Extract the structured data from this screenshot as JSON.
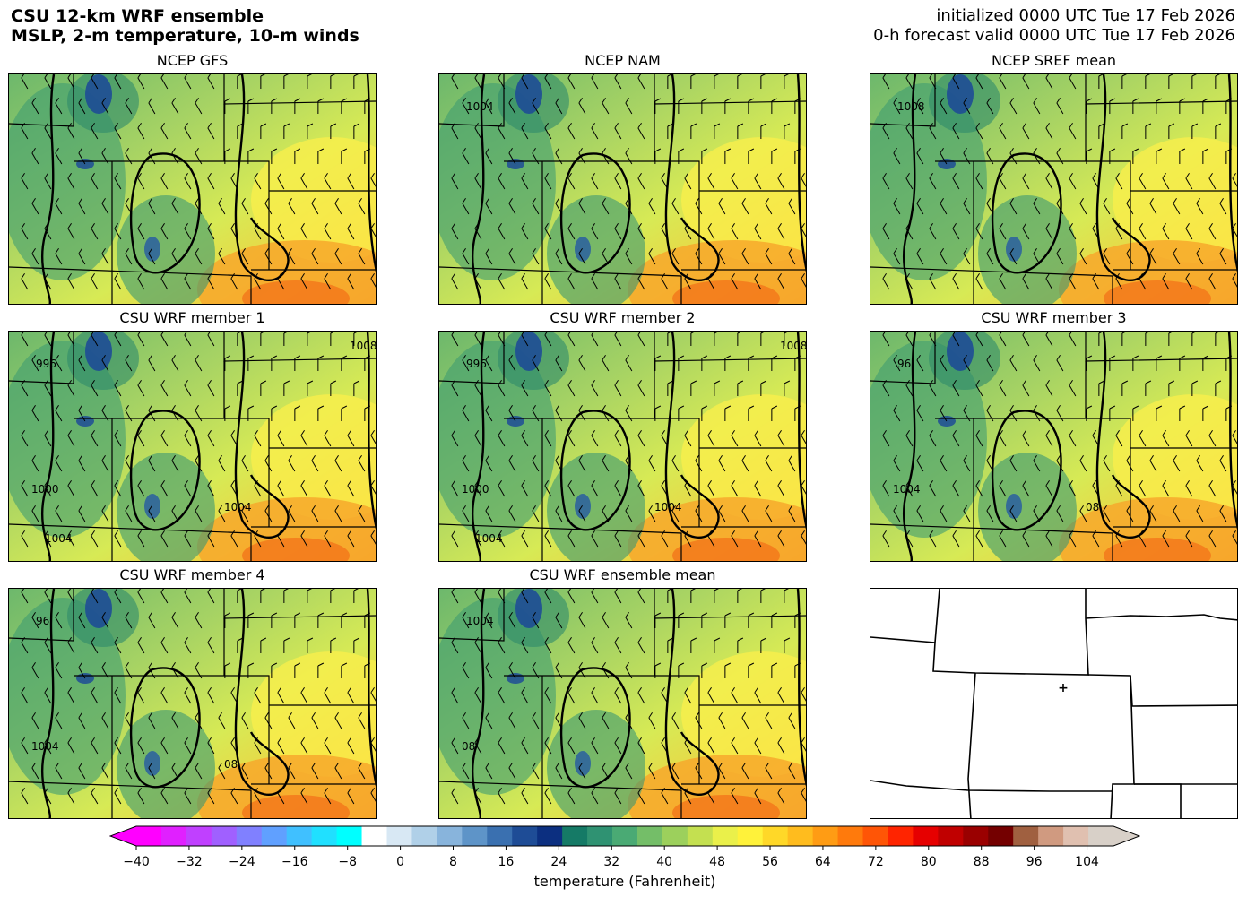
{
  "header": {
    "left_line1": "CSU 12-km WRF ensemble",
    "left_line2": "MSLP, 2-m temperature, 10-m winds",
    "right_line1": "initialized 0000 UTC Tue 17 Feb 2026",
    "right_line2": "0-h forecast valid 0000 UTC Tue 17 Feb 2026"
  },
  "panels": [
    {
      "title": "NCEP GFS",
      "isobar_labels": []
    },
    {
      "title": "NCEP NAM",
      "isobar_labels": [
        "1004"
      ]
    },
    {
      "title": "NCEP SREF mean",
      "isobar_labels": [
        "1008"
      ]
    },
    {
      "title": "CSU WRF member 1",
      "isobar_labels": [
        "996",
        "1000",
        "1004",
        "1004",
        "1008"
      ]
    },
    {
      "title": "CSU WRF member 2",
      "isobar_labels": [
        "996",
        "1000",
        "1004",
        "1004",
        "1008"
      ]
    },
    {
      "title": "CSU WRF member 3",
      "isobar_labels": [
        "96",
        "1004",
        "08"
      ]
    },
    {
      "title": "CSU WRF member 4",
      "isobar_labels": [
        "96",
        "1004",
        "08"
      ]
    },
    {
      "title": "CSU WRF ensemble mean",
      "isobar_labels": [
        "1004",
        "08"
      ]
    },
    {
      "title": "",
      "isobar_labels": []
    }
  ],
  "colorbar": {
    "label": "temperature (Fahrenheit)",
    "ticks": [
      "−40",
      "−32",
      "−24",
      "−16",
      "−8",
      "0",
      "8",
      "16",
      "24",
      "32",
      "40",
      "48",
      "56",
      "64",
      "72",
      "80",
      "88",
      "96",
      "104"
    ],
    "min": -40,
    "max": 108,
    "colors": [
      "#ff00ff",
      "#e020ff",
      "#c040ff",
      "#a060ff",
      "#8080ff",
      "#60a0ff",
      "#40c0ff",
      "#20e0ff",
      "#00ffff",
      "#ffffff",
      "#d8e8f4",
      "#b0d0e8",
      "#88b4dc",
      "#5e94c8",
      "#3a70b0",
      "#1e4c96",
      "#0c2f80",
      "#157a66",
      "#2f9272",
      "#4aaa74",
      "#74be68",
      "#9cd05c",
      "#c4e050",
      "#eaf04a",
      "#fff23a",
      "#ffd828",
      "#ffbc1e",
      "#ff9c14",
      "#ff7a0c",
      "#ff5506",
      "#ff2400",
      "#e60000",
      "#c00000",
      "#9a0000",
      "#740000",
      "#a06040",
      "#d09a80",
      "#e0c0b0",
      "#d8d0c8"
    ]
  }
}
